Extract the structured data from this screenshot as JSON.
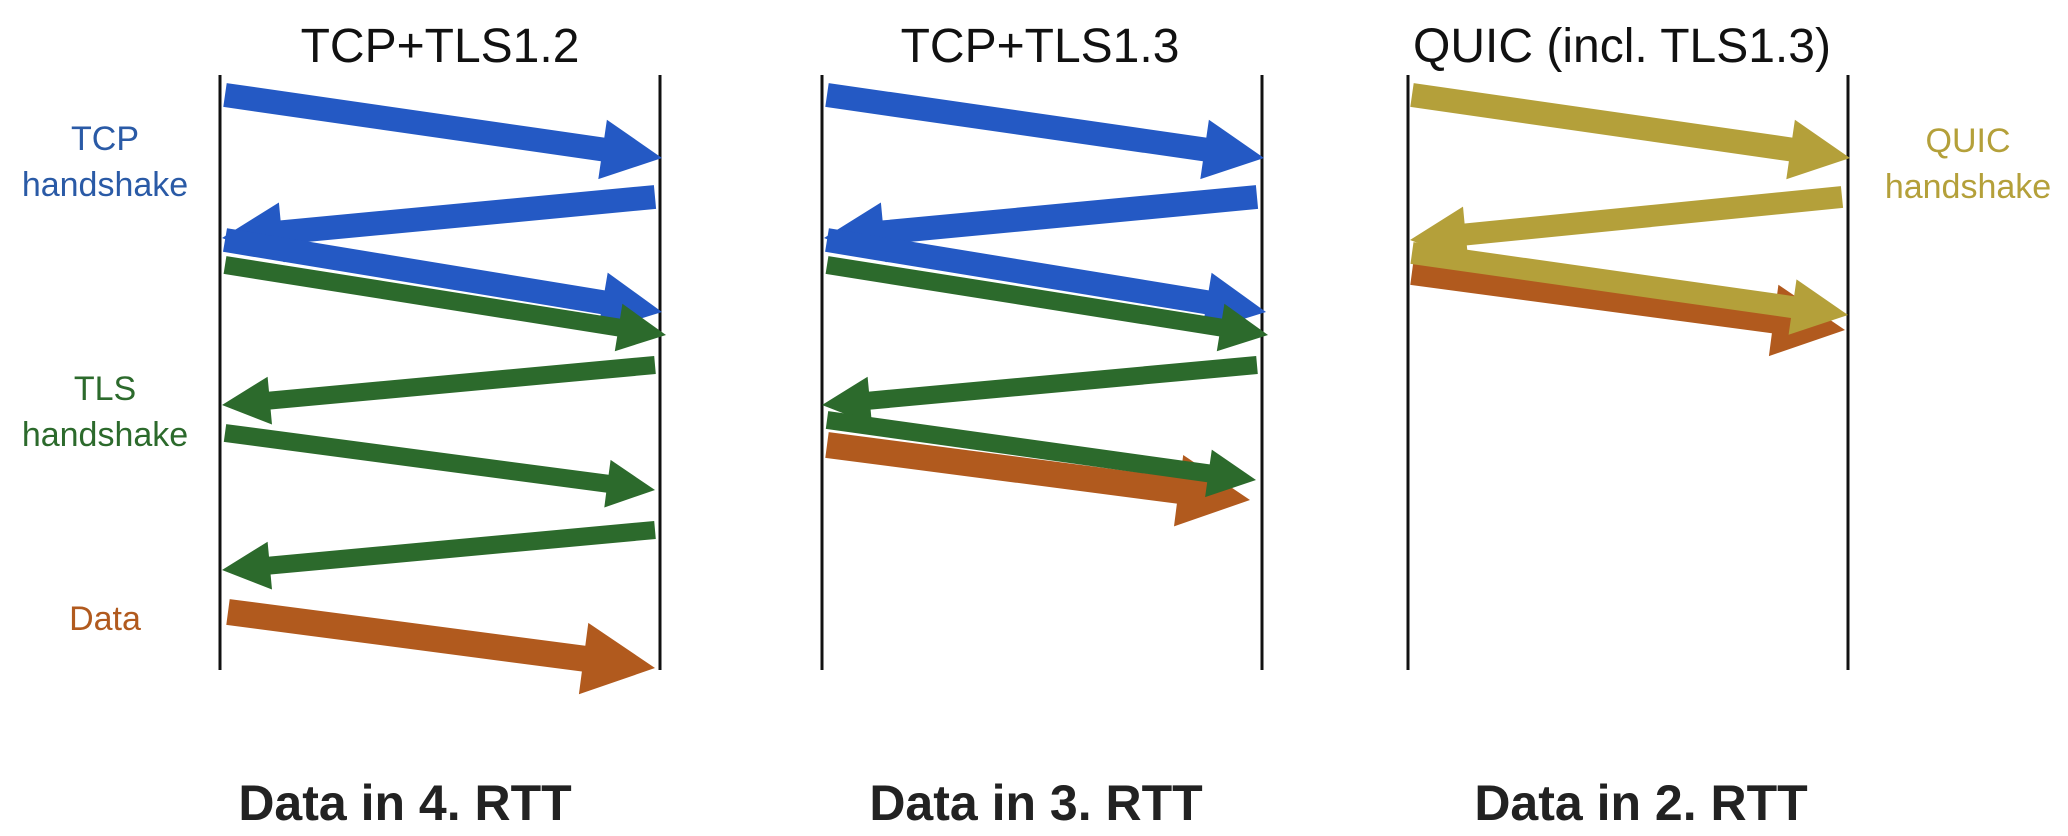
{
  "colors": {
    "tcp": "#2459c4",
    "tls": "#2c6a2c",
    "data": "#b15a1e",
    "quic": "#b4a03a",
    "timeline": "#111111",
    "tcp_label": "#2a5aa6",
    "tls_label": "#2c6a2c",
    "data_label": "#b15a1e",
    "quic_label": "#b4a03a"
  },
  "labels": {
    "tcp_handshake_line1": "TCP",
    "tcp_handshake_line2": "handshake",
    "tls_handshake_line1": "TLS",
    "tls_handshake_line2": "handshake",
    "data": "Data",
    "quic_handshake_line1": "QUIC",
    "quic_handshake_line2": "handshake"
  },
  "columns": [
    {
      "title": "TCP+TLS1.2",
      "caption": "Data in 4. RTT",
      "messages": [
        {
          "type": "tcp",
          "direction": "right"
        },
        {
          "type": "tcp",
          "direction": "left"
        },
        {
          "type": "tcp",
          "direction": "right"
        },
        {
          "type": "tls",
          "direction": "right"
        },
        {
          "type": "tls",
          "direction": "left"
        },
        {
          "type": "tls",
          "direction": "right"
        },
        {
          "type": "tls",
          "direction": "left"
        },
        {
          "type": "data",
          "direction": "right"
        }
      ]
    },
    {
      "title": "TCP+TLS1.3",
      "caption": "Data in 3. RTT",
      "messages": [
        {
          "type": "tcp",
          "direction": "right"
        },
        {
          "type": "tcp",
          "direction": "left"
        },
        {
          "type": "tcp",
          "direction": "right"
        },
        {
          "type": "tls",
          "direction": "right"
        },
        {
          "type": "tls",
          "direction": "left"
        },
        {
          "type": "data",
          "direction": "right"
        },
        {
          "type": "tls",
          "direction": "right"
        }
      ]
    },
    {
      "title": "QUIC (incl. TLS1.3)",
      "caption": "Data in 2. RTT",
      "messages": [
        {
          "type": "quic",
          "direction": "right"
        },
        {
          "type": "quic",
          "direction": "left"
        },
        {
          "type": "data",
          "direction": "right"
        },
        {
          "type": "quic",
          "direction": "right"
        }
      ]
    }
  ]
}
